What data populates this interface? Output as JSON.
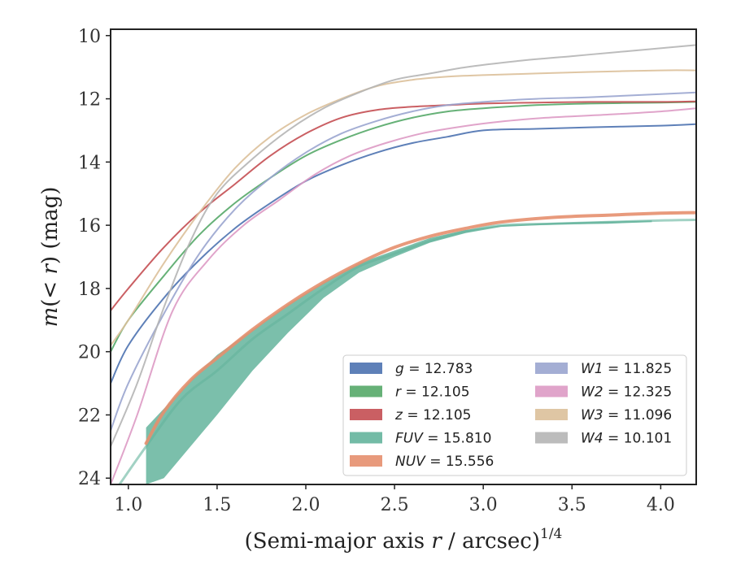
{
  "chart_data": {
    "type": "line",
    "title": "",
    "xlabel": "(Semi-major axis r / arcsec)^1/4",
    "xlabel_main": "(Semi-major axis ",
    "xlabel_r": "r",
    "xlabel_unit": " / arcsec)",
    "xlabel_sup": "1/4",
    "ylabel": "m(< r) (mag)",
    "ylabel_m": "m",
    "ylabel_lt": "(< ",
    "ylabel_r": "r",
    "ylabel_rest": ") (mag)",
    "xlim": [
      0.9,
      4.2
    ],
    "ylim": [
      24.2,
      9.8
    ],
    "y_inverted": true,
    "xticks": [
      "1.0",
      "1.5",
      "2.0",
      "2.5",
      "3.0",
      "3.5",
      "4.0"
    ],
    "yticks": [
      "10",
      "12",
      "14",
      "16",
      "18",
      "20",
      "22",
      "24"
    ],
    "legend_position": "lower-right",
    "series": [
      {
        "name": "g = 12.783",
        "label_var": "g",
        "label_val": "= 12.783",
        "color": "#4c72b0",
        "width": 2,
        "points": [
          [
            0.9,
            21.0
          ],
          [
            1.0,
            19.8
          ],
          [
            1.2,
            18.3
          ],
          [
            1.4,
            17.1
          ],
          [
            1.6,
            16.1
          ],
          [
            1.8,
            15.3
          ],
          [
            2.0,
            14.6
          ],
          [
            2.2,
            14.1
          ],
          [
            2.4,
            13.7
          ],
          [
            2.6,
            13.4
          ],
          [
            2.8,
            13.2
          ],
          [
            3.0,
            13.0
          ],
          [
            3.3,
            12.95
          ],
          [
            3.6,
            12.9
          ],
          [
            4.0,
            12.85
          ],
          [
            4.2,
            12.8
          ]
        ]
      },
      {
        "name": "r = 12.105",
        "label_var": "r",
        "label_val": "= 12.105",
        "color": "#55a868",
        "width": 2,
        "points": [
          [
            0.9,
            20.0
          ],
          [
            1.0,
            19.0
          ],
          [
            1.2,
            17.6
          ],
          [
            1.4,
            16.3
          ],
          [
            1.6,
            15.3
          ],
          [
            1.8,
            14.5
          ],
          [
            2.0,
            13.8
          ],
          [
            2.2,
            13.3
          ],
          [
            2.4,
            12.9
          ],
          [
            2.6,
            12.6
          ],
          [
            2.8,
            12.4
          ],
          [
            3.0,
            12.3
          ],
          [
            3.3,
            12.2
          ],
          [
            3.6,
            12.15
          ],
          [
            4.0,
            12.12
          ],
          [
            4.2,
            12.1
          ]
        ]
      },
      {
        "name": "z = 12.105",
        "label_var": "z",
        "label_val": "= 12.105",
        "color": "#c44e52",
        "width": 2,
        "points": [
          [
            0.9,
            18.7
          ],
          [
            1.0,
            18.0
          ],
          [
            1.2,
            16.7
          ],
          [
            1.4,
            15.6
          ],
          [
            1.6,
            14.7
          ],
          [
            1.8,
            13.8
          ],
          [
            2.0,
            13.1
          ],
          [
            2.2,
            12.6
          ],
          [
            2.4,
            12.35
          ],
          [
            2.6,
            12.25
          ],
          [
            2.8,
            12.2
          ],
          [
            3.0,
            12.15
          ],
          [
            3.3,
            12.12
          ],
          [
            3.6,
            12.1
          ],
          [
            4.0,
            12.1
          ],
          [
            4.2,
            12.08
          ]
        ]
      },
      {
        "name": "FUV = 15.810",
        "label_var": "FUV",
        "label_val": "= 15.810",
        "color": "#64b49c",
        "width": 3,
        "band": true,
        "upper": [
          [
            1.1,
            22.4
          ],
          [
            1.2,
            21.8
          ],
          [
            1.35,
            20.9
          ],
          [
            1.5,
            20.1
          ],
          [
            1.7,
            19.3
          ],
          [
            1.9,
            18.5
          ],
          [
            2.1,
            17.8
          ],
          [
            2.3,
            17.2
          ],
          [
            2.5,
            16.8
          ],
          [
            2.7,
            16.4
          ],
          [
            2.9,
            16.15
          ],
          [
            3.1,
            16.0
          ],
          [
            3.4,
            15.92
          ],
          [
            3.7,
            15.88
          ],
          [
            3.95,
            15.85
          ]
        ],
        "lower": [
          [
            1.1,
            24.2
          ],
          [
            1.2,
            24.0
          ],
          [
            1.35,
            23.0
          ],
          [
            1.5,
            22.0
          ],
          [
            1.7,
            20.6
          ],
          [
            1.9,
            19.4
          ],
          [
            2.1,
            18.3
          ],
          [
            2.3,
            17.5
          ],
          [
            2.5,
            17.0
          ],
          [
            2.7,
            16.55
          ],
          [
            2.9,
            16.25
          ],
          [
            3.1,
            16.05
          ],
          [
            3.4,
            15.98
          ],
          [
            3.7,
            15.95
          ],
          [
            3.95,
            15.9
          ]
        ],
        "points": [
          [
            0.95,
            24.2
          ],
          [
            1.1,
            23.0
          ],
          [
            1.3,
            21.5
          ],
          [
            1.5,
            20.6
          ],
          [
            1.7,
            19.6
          ],
          [
            1.9,
            18.8
          ],
          [
            2.1,
            18.0
          ],
          [
            2.3,
            17.3
          ],
          [
            2.5,
            16.9
          ],
          [
            2.7,
            16.5
          ],
          [
            2.9,
            16.2
          ],
          [
            3.1,
            16.0
          ],
          [
            3.4,
            15.95
          ],
          [
            3.7,
            15.9
          ],
          [
            4.0,
            15.85
          ],
          [
            4.2,
            15.83
          ]
        ]
      },
      {
        "name": "NUV = 15.556",
        "label_var": "NUV",
        "label_val": "= 15.556",
        "color": "#e58f6e",
        "width": 4,
        "points": [
          [
            1.1,
            22.9
          ],
          [
            1.2,
            21.9
          ],
          [
            1.35,
            20.9
          ],
          [
            1.5,
            20.2
          ],
          [
            1.7,
            19.3
          ],
          [
            1.9,
            18.5
          ],
          [
            2.1,
            17.8
          ],
          [
            2.3,
            17.2
          ],
          [
            2.5,
            16.7
          ],
          [
            2.7,
            16.35
          ],
          [
            2.9,
            16.1
          ],
          [
            3.1,
            15.9
          ],
          [
            3.4,
            15.75
          ],
          [
            3.7,
            15.68
          ],
          [
            4.0,
            15.62
          ],
          [
            4.2,
            15.6
          ]
        ]
      },
      {
        "name": "W1 = 11.825",
        "label_var": "W1",
        "label_val": "= 11.825",
        "color": "#9aa5cf",
        "width": 2,
        "points": [
          [
            0.9,
            22.5
          ],
          [
            1.0,
            21.0
          ],
          [
            1.2,
            18.8
          ],
          [
            1.4,
            16.9
          ],
          [
            1.6,
            15.5
          ],
          [
            1.8,
            14.5
          ],
          [
            2.0,
            13.7
          ],
          [
            2.2,
            13.1
          ],
          [
            2.4,
            12.7
          ],
          [
            2.6,
            12.4
          ],
          [
            2.8,
            12.2
          ],
          [
            3.0,
            12.1
          ],
          [
            3.3,
            12.0
          ],
          [
            3.6,
            11.95
          ],
          [
            4.0,
            11.85
          ],
          [
            4.2,
            11.8
          ]
        ]
      },
      {
        "name": "W2 = 12.325",
        "label_var": "W2",
        "label_val": "= 12.325",
        "color": "#dd9ac4",
        "width": 2,
        "points": [
          [
            0.9,
            24.2
          ],
          [
            1.05,
            22.0
          ],
          [
            1.25,
            18.7
          ],
          [
            1.45,
            17.1
          ],
          [
            1.65,
            16.0
          ],
          [
            1.85,
            15.2
          ],
          [
            2.05,
            14.4
          ],
          [
            2.25,
            13.8
          ],
          [
            2.45,
            13.4
          ],
          [
            2.65,
            13.1
          ],
          [
            2.85,
            12.9
          ],
          [
            3.05,
            12.75
          ],
          [
            3.35,
            12.6
          ],
          [
            3.7,
            12.5
          ],
          [
            4.0,
            12.4
          ],
          [
            4.2,
            12.3
          ]
        ]
      },
      {
        "name": "W3 = 11.096",
        "label_var": "W3",
        "label_val": "= 11.096",
        "color": "#dcc09a",
        "width": 2,
        "points": [
          [
            0.9,
            19.8
          ],
          [
            1.0,
            19.0
          ],
          [
            1.2,
            17.2
          ],
          [
            1.4,
            15.6
          ],
          [
            1.6,
            14.2
          ],
          [
            1.8,
            13.2
          ],
          [
            2.0,
            12.5
          ],
          [
            2.2,
            12.0
          ],
          [
            2.4,
            11.6
          ],
          [
            2.6,
            11.4
          ],
          [
            2.8,
            11.3
          ],
          [
            3.0,
            11.25
          ],
          [
            3.3,
            11.2
          ],
          [
            3.6,
            11.15
          ],
          [
            4.0,
            11.1
          ],
          [
            4.2,
            11.1
          ]
        ]
      },
      {
        "name": "W4 = 10.101",
        "label_var": "W4",
        "label_val": "= 10.101",
        "color": "#b5b5b5",
        "width": 2,
        "points": [
          [
            0.9,
            23.0
          ],
          [
            1.05,
            21.0
          ],
          [
            1.2,
            18.6
          ],
          [
            1.35,
            16.5
          ],
          [
            1.5,
            15.0
          ],
          [
            1.7,
            13.9
          ],
          [
            1.9,
            13.0
          ],
          [
            2.1,
            12.3
          ],
          [
            2.3,
            11.8
          ],
          [
            2.5,
            11.4
          ],
          [
            2.7,
            11.2
          ],
          [
            2.9,
            11.0
          ],
          [
            3.2,
            10.8
          ],
          [
            3.5,
            10.65
          ],
          [
            3.8,
            10.5
          ],
          [
            4.2,
            10.3
          ]
        ]
      }
    ]
  }
}
